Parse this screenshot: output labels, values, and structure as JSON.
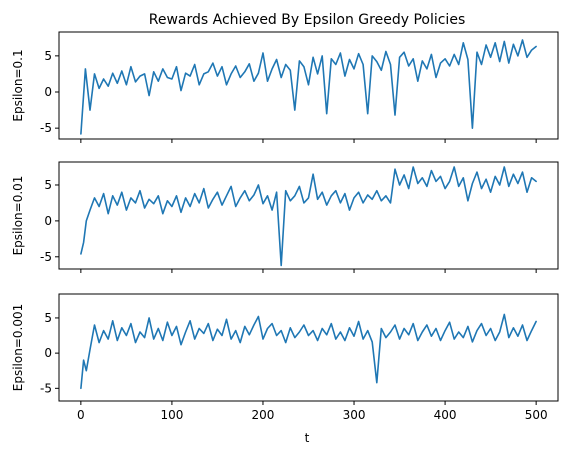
{
  "figure": {
    "title": "Rewards Achieved By Epsilon Greedy Policies",
    "xlabel": "t"
  },
  "chart_data": [
    {
      "type": "line",
      "title": "Rewards Achieved By Epsilon Greedy Policies",
      "ylabel": "Epsilon=0.1",
      "xlabel": "",
      "xlim": [
        -24,
        524
      ],
      "ylim": [
        -6.5,
        8.3
      ],
      "xticks": [
        0,
        100,
        200,
        300,
        400,
        500
      ],
      "yticks": [
        -5,
        0,
        5
      ],
      "grid": false,
      "color": "#1f77b4",
      "series": [
        {
          "x": [
            0,
            5,
            10,
            15,
            20,
            25,
            30,
            35,
            40,
            45,
            50,
            55,
            60,
            65,
            70,
            75,
            80,
            85,
            90,
            95,
            100,
            105,
            110,
            115,
            120,
            125,
            130,
            135,
            140,
            145,
            150,
            155,
            160,
            165,
            170,
            175,
            180,
            185,
            190,
            195,
            200,
            205,
            210,
            215,
            220,
            225,
            230,
            235,
            240,
            245,
            250,
            255,
            260,
            265,
            270,
            275,
            280,
            285,
            290,
            295,
            300,
            305,
            310,
            315,
            320,
            325,
            330,
            335,
            340,
            345,
            350,
            355,
            360,
            365,
            370,
            375,
            380,
            385,
            390,
            395,
            400,
            405,
            410,
            415,
            420,
            425,
            430,
            435,
            440,
            445,
            450,
            455,
            460,
            465,
            470,
            475,
            480,
            485,
            490,
            495,
            500
          ],
          "y": [
            -5.8,
            3.2,
            -2.5,
            2.5,
            0.5,
            1.8,
            0.8,
            2.6,
            1.2,
            2.9,
            1.0,
            3.5,
            1.4,
            2.2,
            2.5,
            -0.5,
            2.8,
            1.5,
            3.2,
            2.0,
            1.8,
            3.5,
            0.2,
            2.6,
            2.2,
            3.8,
            1.0,
            2.5,
            2.8,
            4.0,
            2.2,
            3.5,
            1.0,
            2.5,
            3.6,
            2.0,
            2.8,
            3.9,
            1.5,
            2.6,
            5.4,
            1.5,
            3.2,
            4.5,
            2.0,
            3.8,
            3.0,
            -2.5,
            4.3,
            3.5,
            1.0,
            4.8,
            2.5,
            5.0,
            -3.0,
            4.6,
            3.8,
            5.4,
            2.2,
            4.5,
            3.2,
            5.3,
            3.8,
            -3.0,
            5.0,
            4.2,
            3.0,
            5.6,
            3.8,
            -3.2,
            4.8,
            5.5,
            3.6,
            4.6,
            1.5,
            4.3,
            3.2,
            5.2,
            2.0,
            4.0,
            4.6,
            3.6,
            5.2,
            3.8,
            6.8,
            4.5,
            -5.0,
            5.5,
            3.8,
            6.5,
            4.8,
            6.8,
            4.2,
            7.0,
            4.0,
            6.6,
            5.0,
            7.2,
            4.8,
            5.8,
            6.3
          ]
        }
      ]
    },
    {
      "type": "line",
      "title": "",
      "ylabel": "Epsilon=0.01",
      "xlabel": "",
      "xlim": [
        -24,
        524
      ],
      "ylim": [
        -6.7,
        8.2
      ],
      "xticks": [
        0,
        100,
        200,
        300,
        400,
        500
      ],
      "yticks": [
        -5,
        0,
        5
      ],
      "grid": false,
      "color": "#1f77b4",
      "series": [
        {
          "x": [
            0,
            3,
            6,
            10,
            15,
            20,
            25,
            30,
            35,
            40,
            45,
            50,
            55,
            60,
            65,
            70,
            75,
            80,
            85,
            90,
            95,
            100,
            105,
            110,
            115,
            120,
            125,
            130,
            135,
            140,
            145,
            150,
            155,
            160,
            165,
            170,
            175,
            180,
            185,
            190,
            195,
            200,
            205,
            210,
            215,
            220,
            225,
            230,
            235,
            240,
            245,
            250,
            255,
            260,
            265,
            270,
            275,
            280,
            285,
            290,
            295,
            300,
            305,
            310,
            315,
            320,
            325,
            330,
            335,
            340,
            345,
            350,
            355,
            360,
            365,
            370,
            375,
            380,
            385,
            390,
            395,
            400,
            405,
            410,
            415,
            420,
            425,
            430,
            435,
            440,
            445,
            450,
            455,
            460,
            465,
            470,
            475,
            480,
            485,
            490,
            495,
            500
          ],
          "y": [
            -4.6,
            -3.0,
            0.0,
            1.5,
            3.2,
            2.0,
            3.8,
            1.0,
            3.5,
            2.2,
            4.0,
            1.5,
            3.2,
            2.5,
            4.2,
            1.8,
            3.0,
            2.4,
            3.5,
            1.0,
            2.8,
            2.0,
            3.5,
            1.2,
            3.2,
            2.0,
            3.8,
            2.5,
            4.5,
            1.8,
            3.0,
            4.0,
            2.2,
            3.5,
            4.8,
            2.0,
            3.2,
            4.2,
            2.8,
            3.6,
            5.0,
            2.4,
            3.5,
            1.5,
            4.0,
            -6.2,
            4.2,
            2.8,
            3.5,
            4.8,
            2.5,
            3.2,
            6.5,
            3.0,
            4.0,
            2.2,
            3.5,
            4.2,
            2.5,
            3.8,
            1.5,
            3.2,
            4.0,
            2.5,
            3.6,
            3.0,
            4.2,
            2.8,
            3.5,
            2.5,
            7.2,
            5.0,
            6.4,
            4.5,
            7.5,
            5.2,
            6.0,
            4.8,
            7.0,
            5.5,
            6.2,
            4.5,
            5.5,
            7.5,
            4.8,
            6.0,
            2.8,
            5.2,
            6.8,
            4.5,
            5.8,
            4.0,
            6.2,
            5.0,
            7.5,
            4.8,
            6.5,
            5.2,
            6.8,
            4.0,
            6.0,
            5.5
          ]
        }
      ]
    },
    {
      "type": "line",
      "title": "",
      "ylabel": "Epsilon=0.001",
      "xlabel": "t",
      "xlim": [
        -24,
        524
      ],
      "ylim": [
        -6.8,
        8.4
      ],
      "xticks": [
        0,
        100,
        200,
        300,
        400,
        500
      ],
      "yticks": [
        -5,
        0,
        5
      ],
      "grid": false,
      "color": "#1f77b4",
      "series": [
        {
          "x": [
            0,
            3,
            6,
            10,
            15,
            20,
            25,
            30,
            35,
            40,
            45,
            50,
            55,
            60,
            65,
            70,
            75,
            80,
            85,
            90,
            95,
            100,
            105,
            110,
            115,
            120,
            125,
            130,
            135,
            140,
            145,
            150,
            155,
            160,
            165,
            170,
            175,
            180,
            185,
            190,
            195,
            200,
            205,
            210,
            215,
            220,
            225,
            230,
            235,
            240,
            245,
            250,
            255,
            260,
            265,
            270,
            275,
            280,
            285,
            290,
            295,
            300,
            305,
            310,
            315,
            320,
            325,
            330,
            335,
            340,
            345,
            350,
            355,
            360,
            365,
            370,
            375,
            380,
            385,
            390,
            395,
            400,
            405,
            410,
            415,
            420,
            425,
            430,
            435,
            440,
            445,
            450,
            455,
            460,
            465,
            470,
            475,
            480,
            485,
            490,
            495,
            500
          ],
          "y": [
            -5.0,
            -1.0,
            -2.5,
            0.5,
            4.0,
            1.5,
            3.2,
            2.0,
            4.6,
            1.8,
            3.6,
            2.5,
            4.2,
            1.5,
            3.0,
            2.2,
            5.0,
            2.0,
            3.5,
            1.8,
            4.4,
            2.5,
            3.8,
            1.2,
            3.0,
            4.6,
            2.0,
            3.5,
            2.8,
            4.2,
            1.8,
            3.4,
            2.5,
            4.8,
            2.0,
            3.2,
            1.5,
            3.8,
            2.6,
            4.0,
            5.2,
            2.0,
            3.5,
            4.2,
            2.5,
            3.2,
            1.5,
            3.6,
            2.2,
            3.0,
            4.0,
            2.5,
            3.2,
            1.8,
            3.5,
            2.6,
            4.2,
            2.0,
            3.0,
            1.8,
            3.6,
            2.4,
            4.5,
            2.0,
            3.2,
            1.6,
            -4.2,
            3.5,
            2.2,
            3.0,
            4.0,
            2.0,
            3.5,
            2.6,
            4.2,
            1.8,
            3.0,
            4.0,
            2.4,
            3.5,
            1.8,
            3.2,
            4.4,
            2.0,
            3.0,
            2.2,
            3.8,
            1.6,
            3.2,
            4.2,
            2.5,
            3.5,
            1.8,
            3.0,
            5.5,
            2.2,
            3.6,
            2.4,
            4.0,
            1.8,
            3.2,
            4.5
          ]
        }
      ]
    }
  ]
}
